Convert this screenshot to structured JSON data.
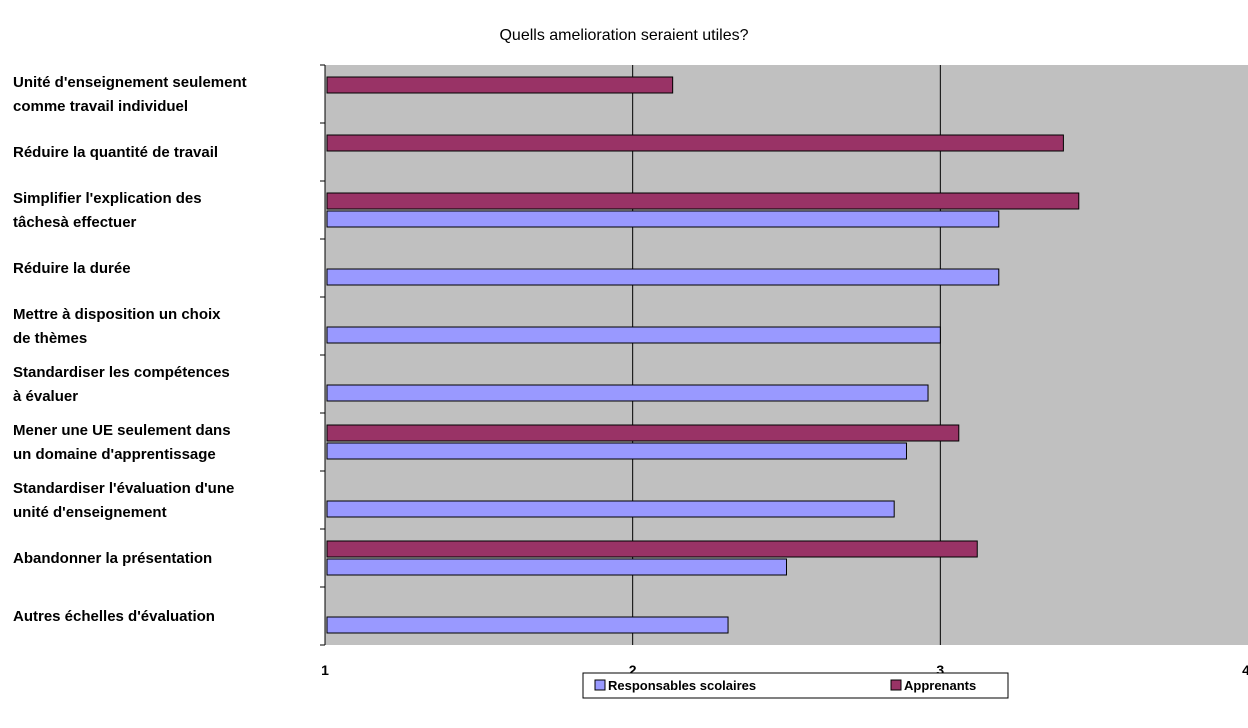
{
  "chart_data": {
    "type": "bar",
    "orientation": "horizontal",
    "title": "Quells amelioration seraient utiles?",
    "xlabel": "",
    "ylabel": "",
    "xlim": [
      1,
      4
    ],
    "xticks": [
      "1",
      "2",
      "3",
      "4"
    ],
    "grid": true,
    "legend_position": "bottom",
    "plot_background": "#c0c0c0",
    "categories": [
      [
        "Unité d'enseignement seulement",
        "comme travail individuel"
      ],
      [
        "Réduire la quantité de travail"
      ],
      [
        "Simplifier l'explication des",
        "tâchesà effectuer"
      ],
      [
        "Réduire la durée"
      ],
      [
        "Mettre à disposition un choix",
        "de thèmes"
      ],
      [
        "Standardiser les compétences",
        "à évaluer"
      ],
      [
        "Mener une UE seulement dans",
        "un domaine d'apprentissage"
      ],
      [
        "Standardiser l'évaluation d'une",
        "unité d'enseignement"
      ],
      [
        "Abandonner la présentation"
      ],
      [
        "Autres échelles d'évaluation"
      ]
    ],
    "series": [
      {
        "name": "Apprenants",
        "color": "#993366",
        "values": [
          2.13,
          3.4,
          3.45,
          null,
          null,
          null,
          3.06,
          null,
          3.12,
          null
        ]
      },
      {
        "name": "Responsables scolaires",
        "color": "#9999ff",
        "values": [
          null,
          null,
          3.19,
          3.19,
          3.0,
          2.96,
          2.89,
          2.85,
          2.5,
          2.31
        ]
      }
    ],
    "legend": [
      "Responsables scolaires",
      "Apprenants"
    ]
  }
}
